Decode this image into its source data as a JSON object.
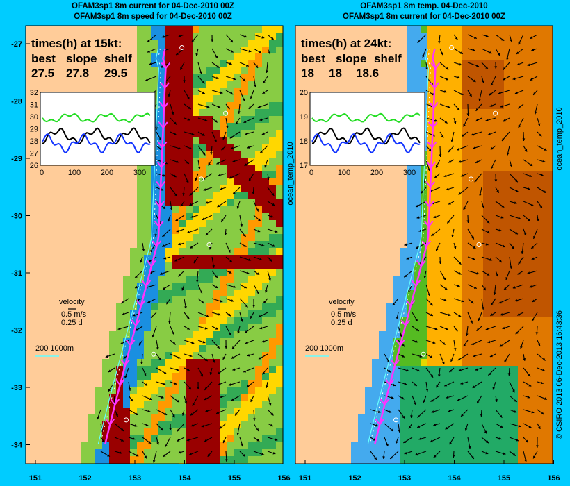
{
  "panels": [
    {
      "title_line1": "OFAM3sp1 8m current for 04-Dec-2010 00Z",
      "title_line2": "OFAM3sp1 8m speed for 04-Dec-2010 00Z",
      "times_header": "times(h) at 15kt:",
      "col_labels": [
        "best",
        "slope",
        "shelf"
      ],
      "col_values": [
        "27.5",
        "27.8",
        "29.5"
      ],
      "inset_yticks": [
        "32",
        "31",
        "30",
        "29",
        "28",
        "27",
        "26"
      ],
      "inset_xticks": [
        "0",
        "100",
        "200",
        "300"
      ],
      "velocity_label": "velocity",
      "velocity_scale": "0.5 m/s",
      "velocity_time": "0.25 d",
      "depth_label": "200  1000m",
      "right_side_text": "ocean_temp_2010",
      "field_colors": [
        "#88cc44",
        "#33aa55",
        "#1a8fe0",
        "#cc2200",
        "#990000",
        "#ffd700",
        "#ff9900"
      ]
    },
    {
      "title_line1": "OFAM3sp1 8m temp. 04-Dec-2010",
      "title_line2": "OFAM3sp1 8m current for 04-Dec-2010 00Z",
      "times_header": "times(h) at 24kt:",
      "col_labels": [
        "best",
        "slope",
        "shelf"
      ],
      "col_values": [
        "18",
        "18",
        "18.6"
      ],
      "inset_yticks": [
        "20",
        "19",
        "18",
        "17"
      ],
      "inset_xticks": [
        "0",
        "100",
        "200",
        "300"
      ],
      "velocity_label": "velocity",
      "velocity_scale": "0.5 m/s",
      "velocity_time": "0.25 d",
      "depth_label": "200  1000m",
      "right_side_text": "ocean_temp_2010",
      "field_colors": [
        "#e6d800",
        "#ffb000",
        "#e07800",
        "#c05500",
        "#55bb22",
        "#44aaee",
        "#22aa66"
      ]
    }
  ],
  "map_axes": {
    "lat_ticks": [
      "-27",
      "-28",
      "-29",
      "-30",
      "-31",
      "-32",
      "-33",
      "-34"
    ],
    "lon_ticks": [
      "151",
      "152",
      "153",
      "154",
      "155",
      "156"
    ]
  },
  "footer_text": "© CSIRO 2013   06-Dec-2013 16:43:36",
  "colors": {
    "background": "#00ccff",
    "land": "#ffcc99",
    "route": "#ff33ff",
    "cyan_contour": "#66ffff"
  }
}
